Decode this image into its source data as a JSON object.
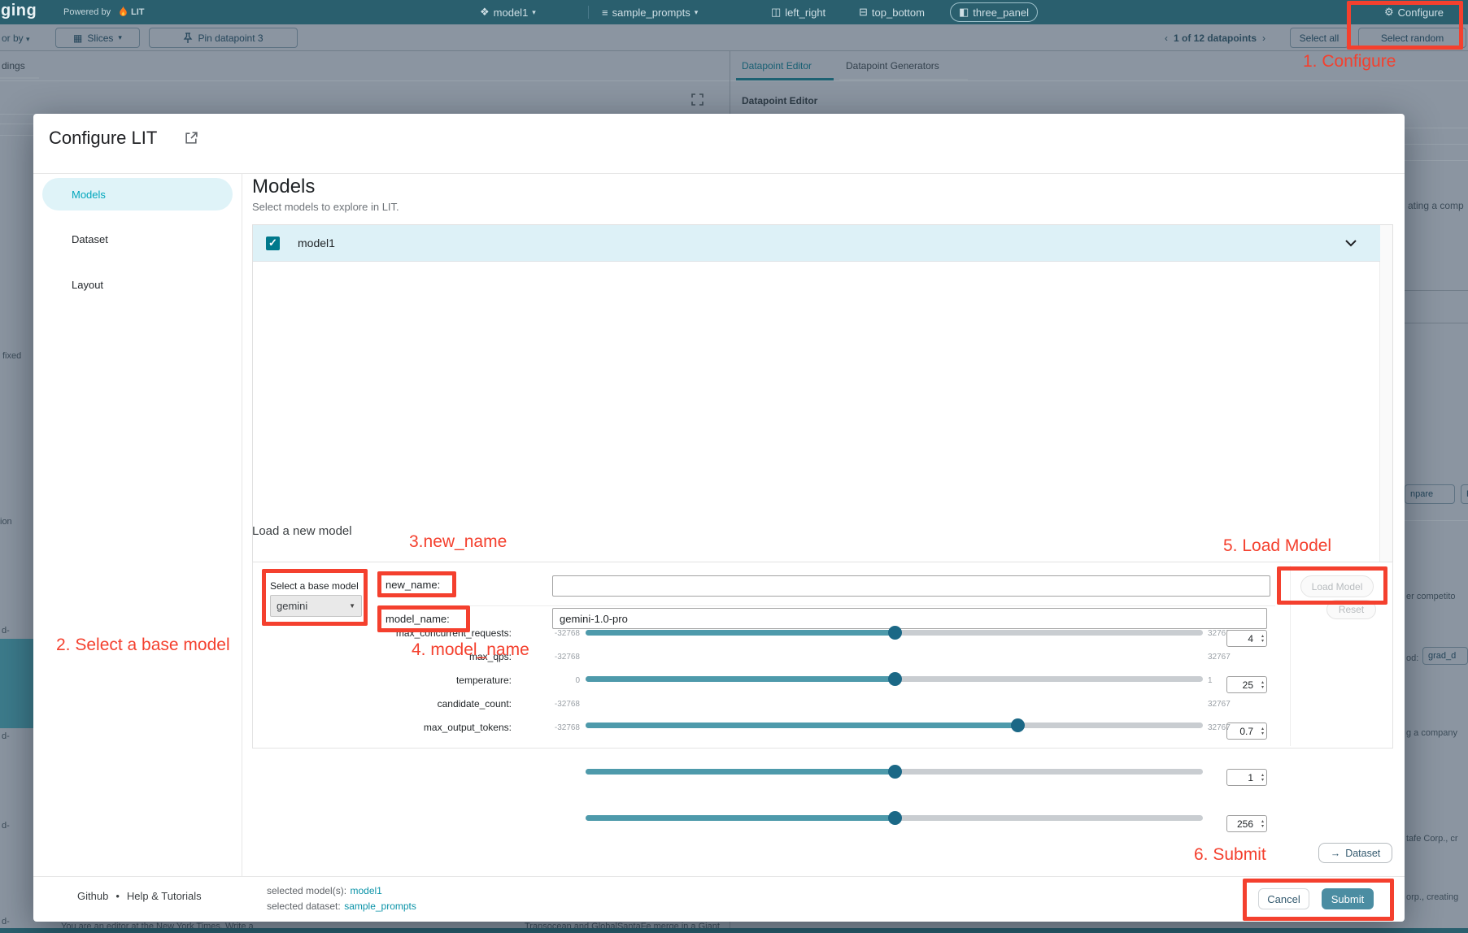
{
  "topbar": {
    "logo_fragment": "ging",
    "powered_by": "Powered by",
    "lit": "LIT",
    "model_button": "model1",
    "dataset_button": "sample_prompts",
    "layout_buttons": [
      {
        "label": "left_right"
      },
      {
        "label": "top_bottom"
      },
      {
        "label": "three_panel"
      }
    ],
    "configure_label": "Configure",
    "caret": "▾"
  },
  "toolbar": {
    "color_by_fragment": "or by",
    "slices_label": "Slices",
    "pin_label": "Pin datapoint 3",
    "prev": "‹",
    "pagination": "1 of 12 datapoints",
    "next": "›",
    "select_all": "Select all",
    "select_random": "Select random"
  },
  "background": {
    "left_tab_fragment": "dings",
    "right_tabs": [
      {
        "label": "Datapoint Editor"
      },
      {
        "label": "Datapoint Generators"
      }
    ],
    "right_header": "Datapoint Editor",
    "left_strip": [
      "fixed",
      "ion",
      "d-",
      "d-",
      "d-",
      "d-"
    ],
    "right_strip": {
      "frag1": "ating a comp",
      "compare_fragment": "npare",
      "pair_fragment": "F",
      "competitor_fragment": "er competito",
      "method_fragment": "od:",
      "method_value_fragment": "grad_d",
      "company_fragment": "g a company",
      "corp_fragment": "tafe Corp., cr",
      "creating_fragment": "orp., creating"
    },
    "bottom_texts": [
      "You are an editor at the New York Times. Write a",
      "Transocean and GlobalSantaFe merge in a Giant"
    ]
  },
  "modal": {
    "title": "Configure LIT",
    "sidebar": {
      "items": [
        {
          "label": "Models"
        },
        {
          "label": "Dataset"
        },
        {
          "label": "Layout"
        }
      ],
      "footer_link_github": "Github",
      "footer_sep": "•",
      "footer_link_help": "Help & Tutorials"
    },
    "models_section": {
      "heading": "Models",
      "subheading": "Select models to explore in LIT.",
      "model_row_label": "model1",
      "checkbox_glyph": "✓"
    },
    "load_section": {
      "heading": "Load a new model",
      "base_model_label": "Select a base model",
      "base_model_value": "gemini",
      "new_name_label": "new_name:",
      "new_name_value": "",
      "model_name_label": "model_name:",
      "model_name_value": "gemini-1.0-pro",
      "sliders": [
        {
          "label": "max_concurrent_requests:",
          "min": "-32768",
          "max": "32767",
          "value": "4",
          "fill_pct": 50
        },
        {
          "label": "max_qps:",
          "min": "-32768",
          "max": "32767",
          "value": "25",
          "fill_pct": 50
        },
        {
          "label": "temperature:",
          "min": "0",
          "max": "1",
          "value": "0.7",
          "fill_pct": 70
        },
        {
          "label": "candidate_count:",
          "min": "-32768",
          "max": "32767",
          "value": "1",
          "fill_pct": 50
        },
        {
          "label": "max_output_tokens:",
          "min": "-32768",
          "max": "32767",
          "value": "256",
          "fill_pct": 50
        }
      ],
      "load_button": "Load Model",
      "reset_button": "Reset"
    },
    "footer": {
      "selected_model_label": "selected model(s):",
      "selected_model": "model1",
      "selected_dataset_label": "selected dataset:",
      "selected_dataset": "sample_prompts",
      "dataset_button": "Dataset",
      "dataset_arrow": "→",
      "cancel": "Cancel",
      "submit": "Submit"
    }
  },
  "annotations": {
    "accent_color": "#f4402e",
    "step1": "1. Configure",
    "step2": "2. Select a base model",
    "step3": "3.new_name",
    "step4": "4. model_name",
    "step5": "5. Load Model",
    "step6": "6. Submit"
  }
}
